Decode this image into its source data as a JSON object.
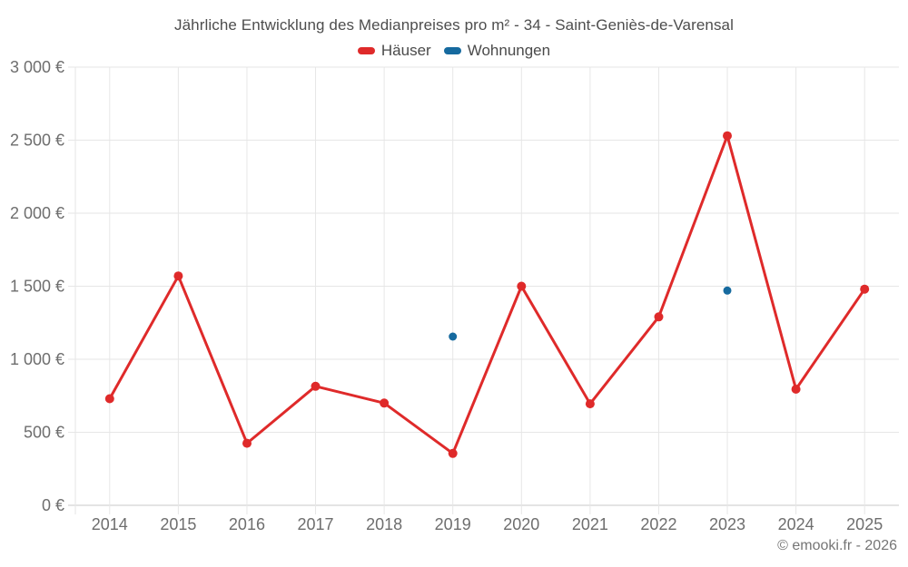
{
  "header": {
    "title": "Jährliche Entwicklung des Medianpreises pro m² - 34 - Saint-Geniès-de-Varensal"
  },
  "legend": {
    "items": [
      {
        "label": "Häuser",
        "color": "#df2a2a"
      },
      {
        "label": "Wohnungen",
        "color": "#166a9f"
      }
    ]
  },
  "footer": {
    "copyright": "© emooki.fr - 2026"
  },
  "colors": {
    "grid": "#e6e6e6",
    "axis": "#c9c9c9",
    "axis_label": "#6e6e6e"
  },
  "chart_data": {
    "type": "line",
    "title": "Jährliche Entwicklung des Medianpreises pro m² - 34 - Saint-Geniès-de-Varensal",
    "categories": [
      "2014",
      "2015",
      "2016",
      "2017",
      "2018",
      "2019",
      "2020",
      "2021",
      "2022",
      "2023",
      "2024",
      "2025"
    ],
    "series": [
      {
        "name": "Häuser",
        "color": "#df2a2a",
        "draw_line": true,
        "marker_radius": 5,
        "values": [
          730,
          1570,
          425,
          815,
          700,
          355,
          1500,
          695,
          1290,
          2530,
          795,
          1480
        ]
      },
      {
        "name": "Wohnungen",
        "color": "#166a9f",
        "draw_line": false,
        "marker_radius": 4.5,
        "values": [
          null,
          null,
          null,
          null,
          null,
          1155,
          null,
          null,
          null,
          1470,
          null,
          null
        ]
      }
    ],
    "xlabel": "",
    "ylabel": "",
    "ylim": [
      0,
      3000
    ],
    "ytick_step": 500,
    "ytick_labels": [
      "0 €",
      "500 €",
      "1 000 €",
      "1 500 €",
      "2 000 €",
      "2 500 €",
      "3 000 €"
    ],
    "grid": true,
    "legend_position": "top"
  }
}
